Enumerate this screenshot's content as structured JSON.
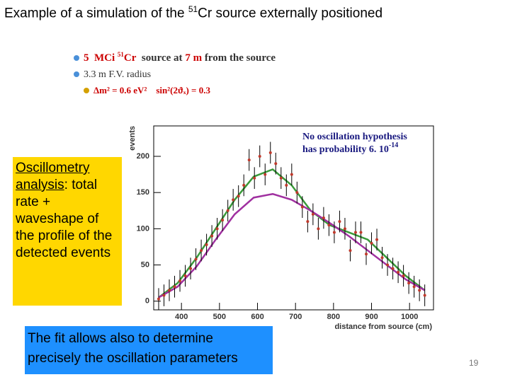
{
  "slide": {
    "title": {
      "before": "Example of a simulation of the ",
      "sup": "51",
      "after": "Cr source externally positioned"
    },
    "bullets": [
      [
        "5",
        "MCi",
        "51",
        "Cr",
        "source at",
        "7 m",
        "from the source"
      ],
      [
        "3.3 m F.V. radius"
      ],
      [
        "Δm² = 0.6 eV²",
        "sin²(2ϑₓ) = 0.3"
      ]
    ],
    "yellow_box": {
      "underlined": "Oscillometry analysis",
      "rest": ": total rate + waveshape of the profile of the detected events"
    },
    "blue_box": "The fit allows also to determine precisely the oscillation parameters",
    "page_number": "19"
  },
  "chart_data": {
    "type": "scatter",
    "x_label": "distance from source (cm)",
    "y_label": "events",
    "annotation": {
      "line1": "No oscillation hypothesis",
      "line2": "has probability 6. 10",
      "sup": "-14"
    },
    "xlim": [
      327,
      1063
    ],
    "ylim": [
      -12,
      242
    ],
    "xticks": [
      400,
      500,
      600,
      700,
      800,
      900,
      1000
    ],
    "yticks": [
      0,
      50,
      100,
      150,
      200
    ],
    "error": 15,
    "points": {
      "color": "#c0392b",
      "x": [
        340,
        354,
        368,
        382,
        396,
        410,
        424,
        438,
        452,
        466,
        480,
        494,
        508,
        522,
        536,
        550,
        564,
        578,
        592,
        606,
        620,
        634,
        648,
        662,
        676,
        690,
        704,
        718,
        732,
        746,
        760,
        774,
        788,
        802,
        816,
        830,
        844,
        858,
        872,
        886,
        900,
        914,
        928,
        942,
        956,
        970,
        984,
        998,
        1012,
        1026,
        1040
      ],
      "values": [
        3,
        8,
        15,
        20,
        28,
        35,
        45,
        58,
        70,
        78,
        90,
        100,
        112,
        125,
        140,
        145,
        160,
        195,
        170,
        200,
        175,
        205,
        190,
        170,
        160,
        175,
        150,
        130,
        110,
        120,
        100,
        115,
        105,
        95,
        110,
        100,
        70,
        95,
        95,
        65,
        80,
        85,
        60,
        50,
        45,
        40,
        35,
        25,
        20,
        15,
        8
      ]
    },
    "curve_x": [
      340,
      390,
      440,
      490,
      540,
      590,
      640,
      690,
      740,
      790,
      840,
      890,
      940,
      990,
      1040
    ],
    "series": [
      {
        "color": "#3a9a3a",
        "values": [
          5,
          25,
          60,
          100,
          140,
          172,
          182,
          160,
          125,
          105,
          95,
          85,
          60,
          35,
          15
        ]
      },
      {
        "color": "#a030a0",
        "values": [
          5,
          20,
          48,
          85,
          120,
          143,
          148,
          140,
          125,
          108,
          90,
          70,
          50,
          30,
          15
        ]
      }
    ]
  }
}
